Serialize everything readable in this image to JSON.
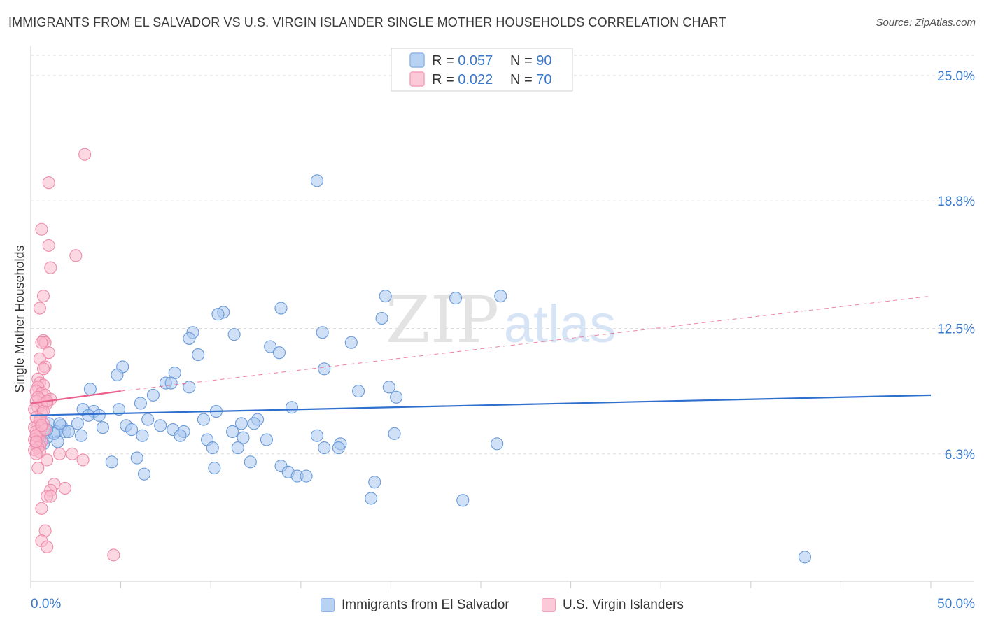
{
  "title": "IMMIGRANTS FROM EL SALVADOR VS U.S. VIRGIN ISLANDER SINGLE MOTHER HOUSEHOLDS CORRELATION CHART",
  "source": "Source: ZipAtlas.com",
  "watermark": {
    "zip": "ZIP",
    "atlas": "atlas"
  },
  "colors": {
    "blue_fill": "#a9c8f0",
    "blue_stroke": "#6a9ad8",
    "blue_line": "#2f6fcd",
    "pink_fill": "#f9b8cc",
    "pink_stroke": "#ee8aaa",
    "pink_line": "#e8628c",
    "axis_label": "#3a78c9",
    "grid": "#dedede"
  },
  "chart_data": {
    "type": "scatter",
    "title": "IMMIGRANTS FROM EL SALVADOR VS U.S. VIRGIN ISLANDER SINGLE MOTHER HOUSEHOLDS CORRELATION CHART",
    "xlabel": "",
    "ylabel": "Single Mother Households",
    "xlim": [
      0,
      50
    ],
    "ylim": [
      0,
      26
    ],
    "x_tick_labels": [
      "0.0%",
      "50.0%"
    ],
    "y_ticks": [
      6.3,
      12.5,
      18.8,
      25.0
    ],
    "y_tick_labels": [
      "6.3%",
      "12.5%",
      "18.8%",
      "25.0%"
    ],
    "legend": [
      {
        "series": "Immigrants from El Salvador",
        "r_label": "R = ",
        "r": "0.057",
        "n_label": "N = ",
        "n": "90"
      },
      {
        "series": "U.S. Virgin Islanders",
        "r_label": "R = ",
        "r": "0.022",
        "n_label": "N = ",
        "n": "70"
      }
    ],
    "series": [
      {
        "name": "Immigrants from El Salvador",
        "color": "blue",
        "trend": {
          "x0": 0,
          "y0": 8.2,
          "x1": 50,
          "y1": 9.2,
          "dashed_x0": 0,
          "dashed_y0": 8.2,
          "dashed_x1": 50,
          "dashed_y1": 9.2
        },
        "points": [
          [
            15.9,
            19.8
          ],
          [
            19.7,
            14.1
          ],
          [
            26.1,
            14.1
          ],
          [
            23.6,
            14.0
          ],
          [
            13.9,
            13.5
          ],
          [
            10.7,
            13.3
          ],
          [
            10.4,
            13.2
          ],
          [
            19.5,
            13.0
          ],
          [
            9.0,
            12.3
          ],
          [
            11.3,
            12.2
          ],
          [
            16.2,
            12.3
          ],
          [
            8.8,
            12.0
          ],
          [
            17.8,
            11.8
          ],
          [
            13.3,
            11.6
          ],
          [
            13.8,
            11.3
          ],
          [
            9.3,
            11.2
          ],
          [
            5.1,
            10.6
          ],
          [
            16.3,
            10.5
          ],
          [
            4.8,
            10.2
          ],
          [
            8.0,
            10.3
          ],
          [
            7.5,
            9.8
          ],
          [
            7.8,
            9.8
          ],
          [
            8.8,
            9.6
          ],
          [
            19.9,
            9.6
          ],
          [
            3.3,
            9.5
          ],
          [
            18.2,
            9.4
          ],
          [
            20.3,
            9.1
          ],
          [
            6.8,
            9.2
          ],
          [
            6.1,
            8.8
          ],
          [
            14.5,
            8.6
          ],
          [
            2.9,
            8.5
          ],
          [
            3.5,
            8.4
          ],
          [
            4.9,
            8.5
          ],
          [
            10.3,
            8.4
          ],
          [
            3.2,
            8.2
          ],
          [
            3.8,
            8.2
          ],
          [
            6.5,
            8.0
          ],
          [
            9.6,
            8.0
          ],
          [
            12.6,
            8.0
          ],
          [
            1.0,
            7.8
          ],
          [
            1.7,
            7.7
          ],
          [
            2.6,
            7.8
          ],
          [
            7.2,
            7.7
          ],
          [
            4.0,
            7.6
          ],
          [
            5.3,
            7.7
          ],
          [
            11.7,
            7.8
          ],
          [
            12.4,
            7.8
          ],
          [
            5.6,
            7.5
          ],
          [
            7.9,
            7.5
          ],
          [
            8.5,
            7.4
          ],
          [
            1.4,
            7.4
          ],
          [
            0.8,
            7.3
          ],
          [
            1.9,
            7.4
          ],
          [
            11.2,
            7.4
          ],
          [
            20.2,
            7.3
          ],
          [
            2.8,
            7.2
          ],
          [
            6.2,
            7.2
          ],
          [
            8.3,
            7.2
          ],
          [
            0.6,
            7.0
          ],
          [
            15.9,
            7.2
          ],
          [
            11.8,
            7.1
          ],
          [
            0.9,
            7.1
          ],
          [
            13.1,
            7.0
          ],
          [
            9.8,
            7.0
          ],
          [
            1.5,
            6.9
          ],
          [
            17.2,
            6.8
          ],
          [
            25.9,
            6.8
          ],
          [
            0.5,
            6.7
          ],
          [
            0.7,
            6.8
          ],
          [
            1.3,
            7.3
          ],
          [
            16.3,
            6.6
          ],
          [
            17.1,
            6.6
          ],
          [
            11.5,
            6.6
          ],
          [
            10.1,
            6.6
          ],
          [
            5.9,
            6.1
          ],
          [
            4.5,
            5.9
          ],
          [
            12.2,
            5.9
          ],
          [
            13.9,
            5.7
          ],
          [
            10.2,
            5.6
          ],
          [
            14.3,
            5.4
          ],
          [
            6.3,
            5.3
          ],
          [
            14.8,
            5.2
          ],
          [
            15.3,
            5.2
          ],
          [
            19.1,
            4.9
          ],
          [
            18.9,
            4.1
          ],
          [
            24.0,
            4.0
          ],
          [
            43.0,
            1.2
          ],
          [
            1.6,
            7.8
          ],
          [
            0.9,
            7.5
          ],
          [
            2.1,
            7.4
          ]
        ]
      },
      {
        "name": "U.S. Virgin Islanders",
        "color": "pink",
        "trend": {
          "x0": 0,
          "y0": 8.8,
          "x1": 5,
          "y1": 9.4,
          "dashed_x0": 5,
          "dashed_y0": 9.4,
          "dashed_x1": 50,
          "dashed_y1": 14.1
        },
        "points": [
          [
            3.0,
            21.1
          ],
          [
            1.0,
            19.7
          ],
          [
            0.6,
            17.4
          ],
          [
            1.0,
            16.6
          ],
          [
            2.5,
            16.1
          ],
          [
            1.1,
            15.5
          ],
          [
            0.7,
            14.1
          ],
          [
            0.5,
            13.5
          ],
          [
            0.7,
            11.9
          ],
          [
            0.8,
            11.8
          ],
          [
            0.6,
            11.8
          ],
          [
            1.0,
            11.3
          ],
          [
            0.5,
            11.0
          ],
          [
            0.8,
            10.6
          ],
          [
            0.7,
            10.5
          ],
          [
            0.4,
            10.0
          ],
          [
            0.5,
            9.8
          ],
          [
            0.7,
            9.7
          ],
          [
            0.4,
            9.6
          ],
          [
            0.3,
            9.4
          ],
          [
            0.6,
            9.3
          ],
          [
            0.8,
            9.2
          ],
          [
            1.1,
            9.0
          ],
          [
            0.5,
            9.0
          ],
          [
            0.3,
            8.9
          ],
          [
            0.9,
            8.8
          ],
          [
            0.6,
            8.7
          ],
          [
            0.4,
            8.6
          ],
          [
            0.2,
            8.5
          ],
          [
            0.6,
            8.3
          ],
          [
            0.3,
            8.1
          ],
          [
            0.5,
            7.9
          ],
          [
            0.7,
            7.8
          ],
          [
            0.4,
            7.7
          ],
          [
            0.2,
            7.6
          ],
          [
            0.6,
            7.6
          ],
          [
            0.3,
            7.4
          ],
          [
            0.5,
            7.3
          ],
          [
            0.4,
            7.1
          ],
          [
            0.2,
            7.0
          ],
          [
            0.6,
            6.9
          ],
          [
            0.3,
            6.8
          ],
          [
            0.5,
            6.7
          ],
          [
            0.4,
            6.6
          ],
          [
            0.2,
            6.5
          ],
          [
            0.5,
            6.4
          ],
          [
            0.3,
            6.3
          ],
          [
            1.6,
            6.3
          ],
          [
            2.3,
            6.3
          ],
          [
            2.9,
            6.0
          ],
          [
            0.9,
            6.0
          ],
          [
            0.4,
            5.6
          ],
          [
            1.3,
            4.8
          ],
          [
            1.9,
            4.6
          ],
          [
            1.1,
            4.5
          ],
          [
            0.9,
            4.2
          ],
          [
            1.1,
            4.2
          ],
          [
            0.6,
            3.6
          ],
          [
            0.8,
            2.5
          ],
          [
            0.6,
            2.0
          ],
          [
            0.9,
            1.7
          ],
          [
            4.6,
            1.3
          ],
          [
            0.3,
            7.2
          ],
          [
            0.7,
            8.4
          ],
          [
            0.4,
            9.1
          ],
          [
            0.8,
            7.5
          ],
          [
            0.5,
            8.0
          ],
          [
            0.3,
            6.9
          ],
          [
            0.6,
            7.7
          ],
          [
            0.9,
            8.9
          ]
        ]
      }
    ]
  }
}
